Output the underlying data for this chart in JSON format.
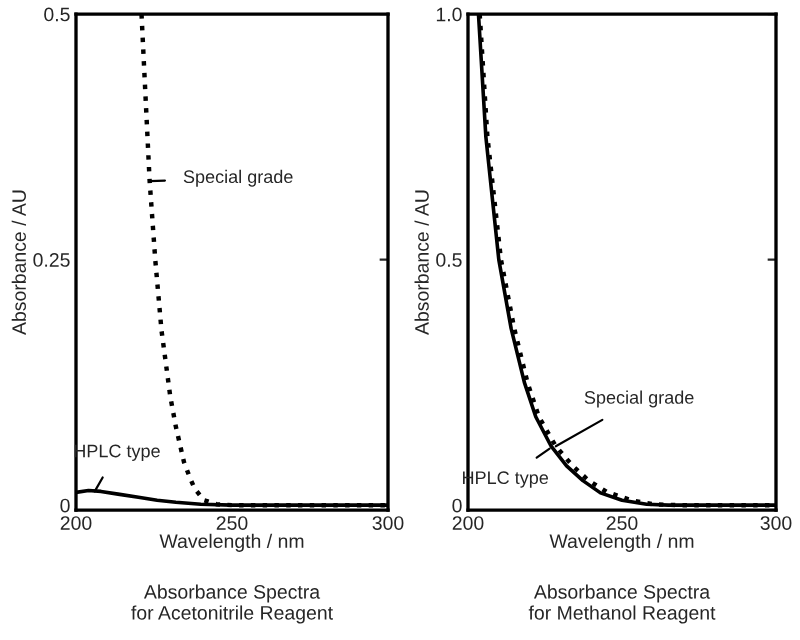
{
  "chart_data": [
    {
      "type": "line",
      "xlabel": "Wavelength / nm",
      "ylabel": "Absorbance / AU",
      "xlim": [
        200,
        300
      ],
      "xticks": [
        200,
        250,
        300
      ],
      "ylim": [
        -0.005,
        0.5
      ],
      "yticks": [
        0,
        0.25,
        0.5
      ],
      "series": [
        {
          "color": "#000000",
          "line_style": "dotted",
          "x": [
            221,
            223.6,
            225.4,
            227.4,
            230.2,
            232,
            234.6,
            236.5,
            238,
            241,
            245,
            250,
            300
          ],
          "values": [
            0.5,
            0.33,
            0.25,
            0.178,
            0.111,
            0.08,
            0.044,
            0.028,
            0.017,
            0.005,
            0.001,
            0,
            0
          ]
        },
        {
          "color": "#000000",
          "line_style": "solid",
          "x": [
            200,
            204,
            208,
            214,
            220,
            226,
            232,
            240,
            250,
            300
          ],
          "values": [
            0.013,
            0.015,
            0.014,
            0.011,
            0.008,
            0.005,
            0.003,
            0.001,
            0,
            0
          ]
        }
      ],
      "annotations": [
        {
          "text": "Special grade",
          "x": 223.6,
          "y": 0.33
        },
        {
          "text": "HPLC type",
          "x": 206,
          "y": 0.014
        },
        "Absorbance Spectra\nfor Acetonitrile Reagent"
      ]
    },
    {
      "type": "line",
      "xlabel": "Wavelength / nm",
      "ylabel": "Absorbance / AU",
      "xlim": [
        200,
        300
      ],
      "xticks": [
        200,
        250,
        300
      ],
      "ylim": [
        -0.01,
        1.0
      ],
      "yticks": [
        0,
        0.5,
        {
          "value": 1.0,
          "label": "1.0"
        }
      ],
      "series": [
        {
          "color": "#000000",
          "line_style": "dotted",
          "x": [
            203.8,
            206.3,
            210.7,
            215,
            219.3,
            223,
            228.5,
            234,
            239.2,
            245,
            253,
            260,
            268,
            300
          ],
          "values": [
            1.0,
            0.75,
            0.5,
            0.36,
            0.25,
            0.18,
            0.12,
            0.08,
            0.05,
            0.027,
            0.01,
            0.002,
            0,
            0
          ]
        },
        {
          "color": "#000000",
          "line_style": "solid",
          "x": [
            203.4,
            205.8,
            210,
            214,
            218.3,
            222,
            227,
            232,
            237.3,
            243,
            250,
            258,
            265,
            300
          ],
          "values": [
            1.0,
            0.75,
            0.5,
            0.36,
            0.25,
            0.18,
            0.12,
            0.08,
            0.05,
            0.025,
            0.01,
            0.002,
            0,
            0
          ]
        }
      ],
      "annotations": [
        {
          "text": "Special grade",
          "x": 228.5,
          "y": 0.12
        },
        {
          "text": "HPLC type",
          "x": 226.5,
          "y": 0.115
        },
        "Absorbance Spectra\nfor Methanol Reagent"
      ]
    }
  ]
}
